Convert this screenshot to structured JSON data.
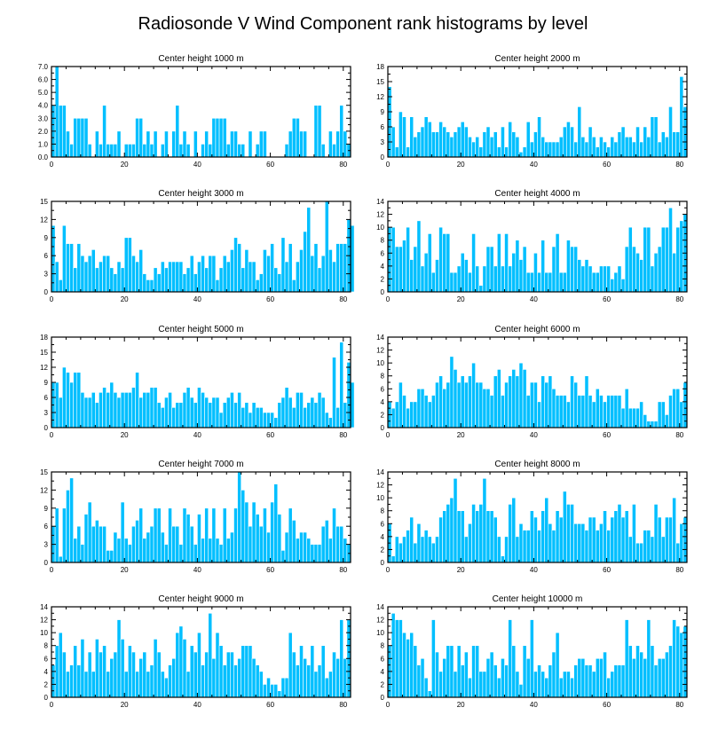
{
  "chart_data": {
    "type": "bar",
    "title": "Radiosonde V Wind Component rank histograms by level",
    "xlim": [
      0,
      82
    ],
    "xticks": [
      0,
      20,
      40,
      60,
      80
    ],
    "bar_color": "#00bfff",
    "panels": [
      {
        "title": "Center height 1000 m",
        "ylim": [
          0,
          7
        ],
        "yticks": [
          0,
          1,
          2,
          3,
          4,
          5,
          6,
          7
        ],
        "ytick_labels": [
          "0.0",
          "1.0",
          "2.0",
          "3.0",
          "4.0",
          "5.0",
          "6.0",
          "7.0"
        ],
        "values": [
          4,
          7,
          4,
          4,
          2,
          1,
          3,
          3,
          3,
          3,
          1,
          0,
          2,
          1,
          4,
          1,
          1,
          1,
          2,
          0,
          1,
          1,
          1,
          3,
          3,
          1,
          2,
          1,
          2,
          0,
          1,
          2,
          0,
          2,
          4,
          1,
          2,
          1,
          0,
          2,
          0,
          1,
          2,
          1,
          3,
          3,
          3,
          3,
          1,
          2,
          2,
          1,
          1,
          0,
          2,
          0,
          1,
          2,
          2,
          0,
          0,
          0,
          0,
          0,
          1,
          2,
          3,
          3,
          2,
          2,
          0,
          0,
          4,
          4,
          1,
          0,
          2,
          1,
          2,
          4,
          2,
          1
        ]
      },
      {
        "title": "Center height 2000 m",
        "ylim": [
          0,
          18
        ],
        "yticks": [
          0,
          3,
          6,
          9,
          12,
          15,
          18
        ],
        "ytick_labels": [
          "0",
          "3",
          "6",
          "9",
          "12",
          "15",
          "18"
        ],
        "values": [
          14,
          6,
          2,
          9,
          8,
          2,
          8,
          4,
          5,
          6,
          8,
          7,
          5,
          5,
          7,
          6,
          5,
          4,
          5,
          6,
          7,
          6,
          4,
          3,
          4,
          2,
          5,
          6,
          4,
          5,
          2,
          6,
          2,
          7,
          5,
          4,
          1,
          2,
          7,
          3,
          5,
          8,
          4,
          3,
          3,
          3,
          3,
          4,
          6,
          7,
          6,
          3,
          10,
          4,
          3,
          6,
          4,
          2,
          4,
          3,
          2,
          4,
          3,
          5,
          6,
          4,
          4,
          3,
          6,
          3,
          6,
          4,
          8,
          8,
          3,
          5,
          4,
          10,
          5,
          5,
          16,
          10
        ]
      },
      {
        "title": "Center height 3000 m",
        "ylim": [
          0,
          15
        ],
        "yticks": [
          0,
          3,
          6,
          9,
          12,
          15
        ],
        "ytick_labels": [
          "0",
          "3",
          "6",
          "9",
          "12",
          "15"
        ],
        "values": [
          11,
          5,
          2,
          11,
          8,
          8,
          4,
          8,
          6,
          5,
          6,
          7,
          4,
          5,
          6,
          6,
          4,
          3,
          5,
          4,
          9,
          9,
          6,
          5,
          7,
          3,
          2,
          2,
          4,
          3,
          5,
          4,
          5,
          5,
          5,
          5,
          3,
          4,
          6,
          3,
          5,
          6,
          4,
          6,
          6,
          2,
          4,
          6,
          5,
          7,
          9,
          8,
          4,
          7,
          5,
          5,
          2,
          3,
          7,
          6,
          8,
          4,
          3,
          9,
          5,
          8,
          2,
          5,
          7,
          10,
          14,
          6,
          8,
          4,
          6,
          15,
          7,
          5,
          8,
          8,
          8,
          12,
          11
        ]
      },
      {
        "title": "Center height 4000 m",
        "ylim": [
          0,
          14
        ],
        "yticks": [
          0,
          2,
          4,
          6,
          8,
          10,
          12,
          14
        ],
        "ytick_labels": [
          "0",
          "2",
          "4",
          "6",
          "8",
          "10",
          "12",
          "14"
        ],
        "values": [
          10,
          10,
          7,
          7,
          8,
          10,
          5,
          7,
          11,
          4,
          6,
          9,
          3,
          5,
          10,
          9,
          9,
          3,
          3,
          4,
          6,
          5,
          3,
          9,
          4,
          1,
          4,
          7,
          7,
          4,
          9,
          4,
          9,
          4,
          6,
          8,
          5,
          7,
          3,
          3,
          6,
          3,
          8,
          3,
          3,
          7,
          9,
          3,
          3,
          8,
          7,
          7,
          5,
          4,
          5,
          4,
          3,
          3,
          4,
          4,
          4,
          2,
          3,
          4,
          2,
          7,
          10,
          7,
          6,
          5,
          10,
          10,
          4,
          6,
          7,
          10,
          10,
          13,
          6,
          10,
          11,
          12
        ]
      },
      {
        "title": "Center height 5000 m",
        "ylim": [
          0,
          18
        ],
        "yticks": [
          0,
          3,
          6,
          9,
          12,
          15,
          18
        ],
        "ytick_labels": [
          "0",
          "3",
          "6",
          "9",
          "12",
          "15",
          "18"
        ],
        "values": [
          9,
          9,
          6,
          12,
          11,
          9,
          11,
          11,
          7,
          6,
          6,
          7,
          5,
          7,
          8,
          7,
          9,
          7,
          6,
          7,
          7,
          7,
          8,
          11,
          6,
          7,
          7,
          8,
          8,
          5,
          4,
          6,
          7,
          4,
          5,
          5,
          7,
          8,
          6,
          5,
          8,
          7,
          6,
          5,
          6,
          6,
          3,
          5,
          6,
          7,
          5,
          7,
          4,
          5,
          3,
          5,
          4,
          4,
          3,
          3,
          3,
          2,
          5,
          6,
          8,
          6,
          4,
          7,
          7,
          4,
          5,
          6,
          5,
          7,
          6,
          3,
          2,
          14,
          4,
          17,
          5,
          13,
          9
        ]
      },
      {
        "title": "Center height 6000 m",
        "ylim": [
          0,
          14
        ],
        "yticks": [
          0,
          2,
          4,
          6,
          8,
          10,
          12,
          14
        ],
        "ytick_labels": [
          "0",
          "2",
          "4",
          "6",
          "8",
          "10",
          "12",
          "14"
        ],
        "values": [
          4,
          3,
          4,
          7,
          5,
          3,
          4,
          4,
          6,
          6,
          5,
          4,
          5,
          7,
          8,
          6,
          7,
          11,
          9,
          7,
          8,
          7,
          8,
          10,
          7,
          7,
          6,
          6,
          5,
          8,
          9,
          5,
          7,
          8,
          9,
          8,
          10,
          9,
          5,
          7,
          7,
          4,
          8,
          7,
          8,
          6,
          5,
          5,
          5,
          4,
          8,
          7,
          5,
          5,
          8,
          5,
          4,
          6,
          5,
          4,
          5,
          5,
          5,
          5,
          3,
          6,
          3,
          3,
          3,
          4,
          2,
          1,
          1,
          1,
          4,
          4,
          2,
          5,
          6,
          6,
          4,
          7
        ]
      },
      {
        "title": "Center height 7000 m",
        "ylim": [
          0,
          15
        ],
        "yticks": [
          0,
          3,
          6,
          9,
          12,
          15
        ],
        "ytick_labels": [
          "0",
          "3",
          "6",
          "9",
          "12",
          "15"
        ],
        "values": [
          6,
          9,
          1,
          9,
          12,
          14,
          4,
          6,
          3,
          8,
          10,
          6,
          7,
          6,
          6,
          2,
          2,
          5,
          4,
          10,
          4,
          3,
          6,
          7,
          9,
          4,
          5,
          6,
          9,
          9,
          5,
          3,
          9,
          6,
          6,
          3,
          9,
          8,
          6,
          3,
          8,
          4,
          9,
          4,
          9,
          4,
          3,
          9,
          4,
          5,
          9,
          15,
          12,
          10,
          6,
          10,
          8,
          6,
          9,
          5,
          10,
          13,
          8,
          2,
          5,
          9,
          7,
          4,
          5,
          5,
          4,
          3,
          3,
          3,
          6,
          7,
          4,
          9,
          6,
          6,
          4,
          3
        ]
      },
      {
        "title": "Center height 8000 m",
        "ylim": [
          0,
          14
        ],
        "yticks": [
          0,
          2,
          4,
          6,
          8,
          10,
          12,
          14
        ],
        "ytick_labels": [
          "0",
          "2",
          "4",
          "6",
          "8",
          "10",
          "12",
          "14"
        ],
        "values": [
          6,
          1,
          4,
          3,
          4,
          5,
          7,
          3,
          6,
          4,
          5,
          4,
          3,
          4,
          7,
          8,
          9,
          10,
          13,
          8,
          8,
          4,
          6,
          9,
          8,
          9,
          13,
          8,
          8,
          7,
          4,
          1,
          4,
          9,
          10,
          4,
          6,
          5,
          5,
          8,
          7,
          5,
          8,
          10,
          6,
          5,
          8,
          7,
          11,
          9,
          9,
          6,
          6,
          6,
          5,
          7,
          7,
          5,
          6,
          8,
          5,
          7,
          8,
          9,
          7,
          8,
          4,
          9,
          3,
          3,
          5,
          5,
          4,
          9,
          7,
          4,
          7,
          7,
          10,
          3,
          6,
          7
        ]
      },
      {
        "title": "Center height 9000 m",
        "ylim": [
          0,
          14
        ],
        "yticks": [
          0,
          2,
          4,
          6,
          8,
          10,
          12,
          14
        ],
        "ytick_labels": [
          "0",
          "2",
          "4",
          "6",
          "8",
          "10",
          "12",
          "14"
        ],
        "values": [
          5,
          8,
          10,
          7,
          4,
          5,
          8,
          5,
          9,
          4,
          7,
          4,
          9,
          7,
          8,
          4,
          6,
          7,
          12,
          9,
          4,
          8,
          7,
          4,
          6,
          7,
          4,
          5,
          9,
          7,
          4,
          3,
          5,
          6,
          10,
          11,
          9,
          4,
          8,
          7,
          10,
          5,
          7,
          13,
          6,
          10,
          8,
          5,
          7,
          7,
          5,
          6,
          8,
          8,
          8,
          6,
          5,
          4,
          2,
          3,
          2,
          2,
          1,
          3,
          3,
          10,
          7,
          5,
          8,
          6,
          5,
          8,
          4,
          5,
          8,
          3,
          4,
          7,
          6,
          12,
          6,
          12
        ]
      },
      {
        "title": "Center height 10000 m",
        "ylim": [
          0,
          14
        ],
        "yticks": [
          0,
          2,
          4,
          6,
          8,
          10,
          12,
          14
        ],
        "ytick_labels": [
          "0",
          "2",
          "4",
          "6",
          "8",
          "10",
          "12",
          "14"
        ],
        "values": [
          8,
          13,
          12,
          12,
          10,
          9,
          10,
          8,
          5,
          6,
          3,
          1,
          12,
          7,
          4,
          6,
          8,
          8,
          4,
          8,
          5,
          7,
          3,
          8,
          8,
          4,
          4,
          6,
          7,
          5,
          3,
          6,
          5,
          12,
          8,
          4,
          2,
          8,
          6,
          12,
          4,
          5,
          4,
          3,
          5,
          7,
          10,
          3,
          4,
          4,
          3,
          5,
          6,
          6,
          5,
          5,
          4,
          6,
          6,
          7,
          3,
          4,
          5,
          5,
          5,
          12,
          8,
          6,
          8,
          7,
          6,
          12,
          8,
          5,
          6,
          6,
          7,
          8,
          12,
          11,
          10,
          11
        ]
      }
    ]
  }
}
